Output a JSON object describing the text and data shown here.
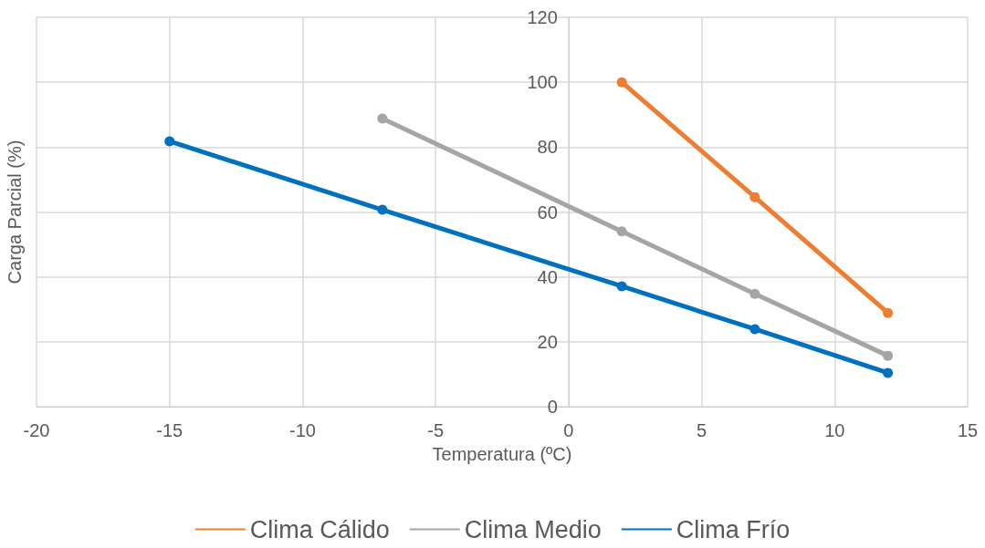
{
  "chart_data": {
    "type": "line",
    "xlabel": "Temperatura (ºC)",
    "ylabel": "Carga Parcial (%)",
    "series": [
      {
        "name": "Clima Cálido",
        "color": "#ed7d31",
        "x": [
          2,
          7,
          12
        ],
        "values": [
          100,
          64.6,
          28.9
        ]
      },
      {
        "name": "Clima Medio",
        "color": "#a5a5a5",
        "x": [
          -7,
          2,
          7,
          12
        ],
        "values": [
          88.8,
          54,
          34.8,
          15.7
        ]
      },
      {
        "name": "Clima Frío",
        "color": "#0070c0",
        "x": [
          -15,
          -7,
          2,
          7,
          12
        ],
        "values": [
          81.8,
          60.7,
          37.1,
          23.9,
          10.4
        ]
      }
    ],
    "xlim": [
      -20,
      15
    ],
    "xticks": [
      -20,
      -15,
      -10,
      -5,
      0,
      5,
      10,
      15
    ],
    "ylim": [
      0,
      120
    ],
    "yticks": [
      0,
      20,
      40,
      60,
      80,
      100,
      120
    ],
    "grid": true,
    "legend": "bottom",
    "marker": "circle",
    "line_style": "solid"
  }
}
